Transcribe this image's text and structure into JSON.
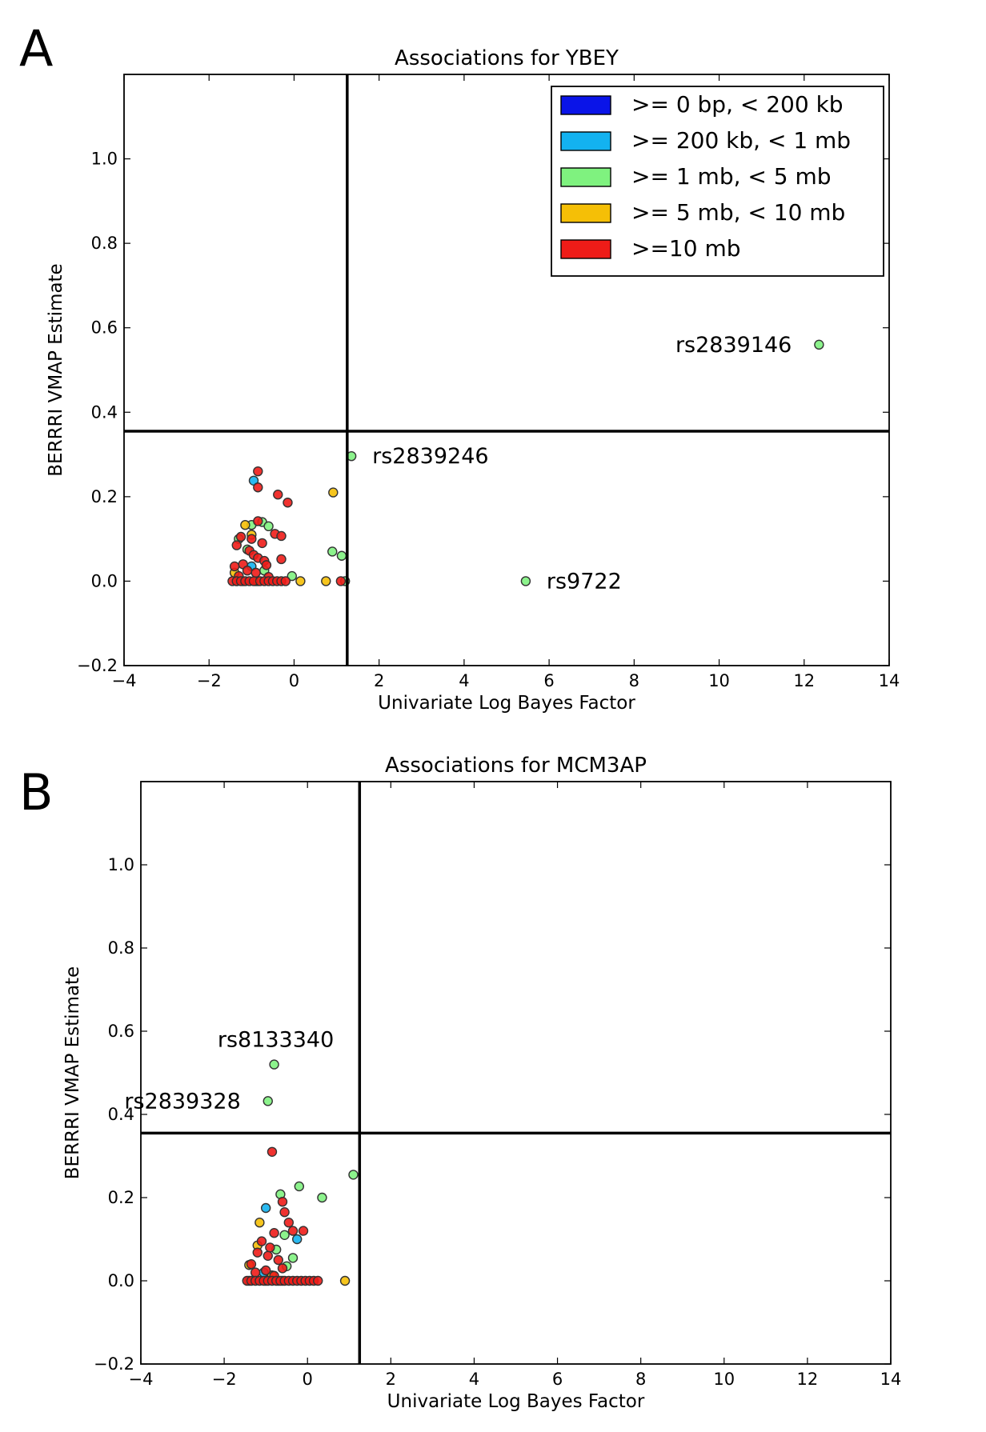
{
  "panels": {
    "a": "A",
    "b": "B"
  },
  "legend": [
    {
      "label": ">= 0 bp, < 200 kb",
      "color": "#0a14e8"
    },
    {
      "label": ">= 200 kb, < 1 mb",
      "color": "#13b2f0"
    },
    {
      "label": ">= 1 mb, < 5 mb",
      "color": "#7ff27f"
    },
    {
      "label": ">= 5 mb, < 10 mb",
      "color": "#f5bf06"
    },
    {
      "label": ">=10 mb",
      "color": "#ee1c18"
    }
  ],
  "chart_data": [
    {
      "type": "scatter",
      "title": "Associations for YBEY",
      "xlabel": "Univariate Log Bayes Factor",
      "ylabel": "BERRRI VMAP Estimate",
      "xlim": [
        -4,
        14
      ],
      "ylim": [
        -0.2,
        1.2
      ],
      "xticks": [
        -4,
        -2,
        0,
        2,
        4,
        6,
        8,
        10,
        12,
        14
      ],
      "yticks": [
        -0.2,
        0.0,
        0.2,
        0.4,
        0.6,
        0.8,
        1.0
      ],
      "threshold_x": 1.25,
      "threshold_y": 0.355,
      "legend_position": "top-right",
      "series": [
        {
          "name": ">= 0 bp, < 200 kb",
          "color": "#0a14e8",
          "points": []
        },
        {
          "name": ">= 200 kb, < 1 mb",
          "color": "#13b2f0",
          "points": [
            [
              -0.95,
              0.238
            ],
            [
              -1.0,
              0.035
            ],
            [
              -1.2,
              0.0
            ]
          ]
        },
        {
          "name": ">= 1 mb, < 5 mb",
          "color": "#7ff27f",
          "points": [
            [
              12.35,
              0.56
            ],
            [
              1.35,
              0.296
            ],
            [
              5.45,
              0.0
            ],
            [
              0.9,
              0.07
            ],
            [
              1.12,
              0.06
            ],
            [
              1.2,
              0.0
            ],
            [
              -0.75,
              0.14
            ],
            [
              -0.6,
              0.13
            ],
            [
              -1.0,
              0.133
            ],
            [
              -1.3,
              0.1
            ],
            [
              -0.05,
              0.012
            ],
            [
              -0.9,
              0.0
            ],
            [
              -1.1,
              0.075
            ],
            [
              -0.7,
              0.025
            ],
            [
              -1.35,
              0.0
            ]
          ]
        },
        {
          "name": ">= 5 mb, < 10 mb",
          "color": "#f5bf06",
          "points": [
            [
              0.92,
              0.21
            ],
            [
              0.75,
              0.0
            ],
            [
              0.15,
              0.0
            ],
            [
              -1.15,
              0.133
            ],
            [
              -1.0,
              0.11
            ],
            [
              -1.4,
              0.02
            ],
            [
              -0.85,
              0.0
            ]
          ]
        },
        {
          "name": ">=10 mb",
          "color": "#ee1c18",
          "points": [
            [
              -0.85,
              0.26
            ],
            [
              -0.85,
              0.222
            ],
            [
              -0.38,
              0.205
            ],
            [
              -0.15,
              0.186
            ],
            [
              -0.85,
              0.142
            ],
            [
              -0.45,
              0.112
            ],
            [
              -0.3,
              0.107
            ],
            [
              -1.25,
              0.105
            ],
            [
              -1.0,
              0.1
            ],
            [
              -0.75,
              0.09
            ],
            [
              -1.35,
              0.085
            ],
            [
              -1.05,
              0.072
            ],
            [
              -0.95,
              0.062
            ],
            [
              -0.85,
              0.055
            ],
            [
              -0.7,
              0.048
            ],
            [
              -0.3,
              0.052
            ],
            [
              -1.2,
              0.04
            ],
            [
              -1.4,
              0.035
            ],
            [
              -0.65,
              0.038
            ],
            [
              -1.1,
              0.025
            ],
            [
              -0.9,
              0.02
            ],
            [
              -1.3,
              0.012
            ],
            [
              -0.6,
              0.01
            ],
            [
              -1.45,
              0.0
            ],
            [
              -1.35,
              0.0
            ],
            [
              -1.25,
              0.0
            ],
            [
              -1.15,
              0.0
            ],
            [
              -1.05,
              0.0
            ],
            [
              -0.95,
              0.0
            ],
            [
              -0.8,
              0.0
            ],
            [
              -0.7,
              0.0
            ],
            [
              -0.6,
              0.0
            ],
            [
              -0.5,
              0.0
            ],
            [
              -0.4,
              0.0
            ],
            [
              -0.3,
              0.0
            ],
            [
              -0.2,
              0.0
            ],
            [
              1.1,
              0.0
            ]
          ]
        }
      ],
      "annotations": [
        {
          "text": "rs2839146",
          "x": 12.35,
          "y": 0.56,
          "side": "left"
        },
        {
          "text": "rs2839246",
          "x": 1.35,
          "y": 0.296,
          "side": "right"
        },
        {
          "text": "rs9722",
          "x": 5.45,
          "y": 0.0,
          "side": "right"
        }
      ]
    },
    {
      "type": "scatter",
      "title": "Associations for MCM3AP",
      "xlabel": "Univariate Log Bayes Factor",
      "ylabel": "BERRRI VMAP Estimate",
      "xlim": [
        -4,
        14
      ],
      "ylim": [
        -0.2,
        1.2
      ],
      "xticks": [
        -4,
        -2,
        0,
        2,
        4,
        6,
        8,
        10,
        12,
        14
      ],
      "yticks": [
        -0.2,
        0.0,
        0.2,
        0.4,
        0.6,
        0.8,
        1.0
      ],
      "threshold_x": 1.25,
      "threshold_y": 0.355,
      "series": [
        {
          "name": ">= 0 bp, < 200 kb",
          "color": "#0a14e8",
          "points": []
        },
        {
          "name": ">= 200 kb, < 1 mb",
          "color": "#13b2f0",
          "points": [
            [
              -1.0,
              0.175
            ],
            [
              -0.25,
              0.1
            ],
            [
              -0.6,
              0.0
            ],
            [
              -1.05,
              0.02
            ]
          ]
        },
        {
          "name": ">= 1 mb, < 5 mb",
          "color": "#7ff27f",
          "points": [
            [
              -0.8,
              0.52
            ],
            [
              -0.95,
              0.432
            ],
            [
              1.1,
              0.255
            ],
            [
              -0.2,
              0.227
            ],
            [
              0.35,
              0.2
            ],
            [
              -0.65,
              0.208
            ],
            [
              -0.35,
              0.055
            ],
            [
              -0.75,
              0.075
            ],
            [
              -1.4,
              0.0
            ],
            [
              -0.5,
              0.035
            ],
            [
              -0.55,
              0.11
            ],
            [
              -1.0,
              0.0
            ]
          ]
        },
        {
          "name": ">= 5 mb, < 10 mb",
          "color": "#f5bf06",
          "points": [
            [
              0.9,
              0.0
            ],
            [
              -1.15,
              0.14
            ],
            [
              -1.4,
              0.038
            ],
            [
              -0.85,
              0.013
            ],
            [
              -1.2,
              0.085
            ],
            [
              -0.7,
              0.0
            ]
          ]
        },
        {
          "name": ">=10 mb",
          "color": "#ee1c18",
          "points": [
            [
              -0.85,
              0.31
            ],
            [
              -0.6,
              0.19
            ],
            [
              -0.55,
              0.165
            ],
            [
              -0.45,
              0.14
            ],
            [
              -0.1,
              0.12
            ],
            [
              -0.35,
              0.12
            ],
            [
              -0.8,
              0.115
            ],
            [
              -1.1,
              0.095
            ],
            [
              -0.9,
              0.08
            ],
            [
              -1.2,
              0.068
            ],
            [
              -0.95,
              0.06
            ],
            [
              -0.7,
              0.05
            ],
            [
              -1.35,
              0.04
            ],
            [
              -0.6,
              0.03
            ],
            [
              -1.0,
              0.025
            ],
            [
              -1.25,
              0.02
            ],
            [
              -0.8,
              0.012
            ],
            [
              -1.45,
              0.0
            ],
            [
              -1.35,
              0.0
            ],
            [
              -1.25,
              0.0
            ],
            [
              -1.15,
              0.0
            ],
            [
              -1.05,
              0.0
            ],
            [
              -0.95,
              0.0
            ],
            [
              -0.85,
              0.0
            ],
            [
              -0.75,
              0.0
            ],
            [
              -0.65,
              0.0
            ],
            [
              -0.55,
              0.0
            ],
            [
              -0.45,
              0.0
            ],
            [
              -0.35,
              0.0
            ],
            [
              -0.25,
              0.0
            ],
            [
              -0.15,
              0.0
            ],
            [
              -0.05,
              0.0
            ],
            [
              0.05,
              0.0
            ],
            [
              0.15,
              0.0
            ],
            [
              0.25,
              0.0
            ]
          ]
        }
      ],
      "annotations": [
        {
          "text": "rs8133340",
          "x": -0.8,
          "y": 0.52,
          "side": "above-left"
        },
        {
          "text": "rs2839328",
          "x": -0.95,
          "y": 0.432,
          "side": "left"
        }
      ]
    }
  ]
}
